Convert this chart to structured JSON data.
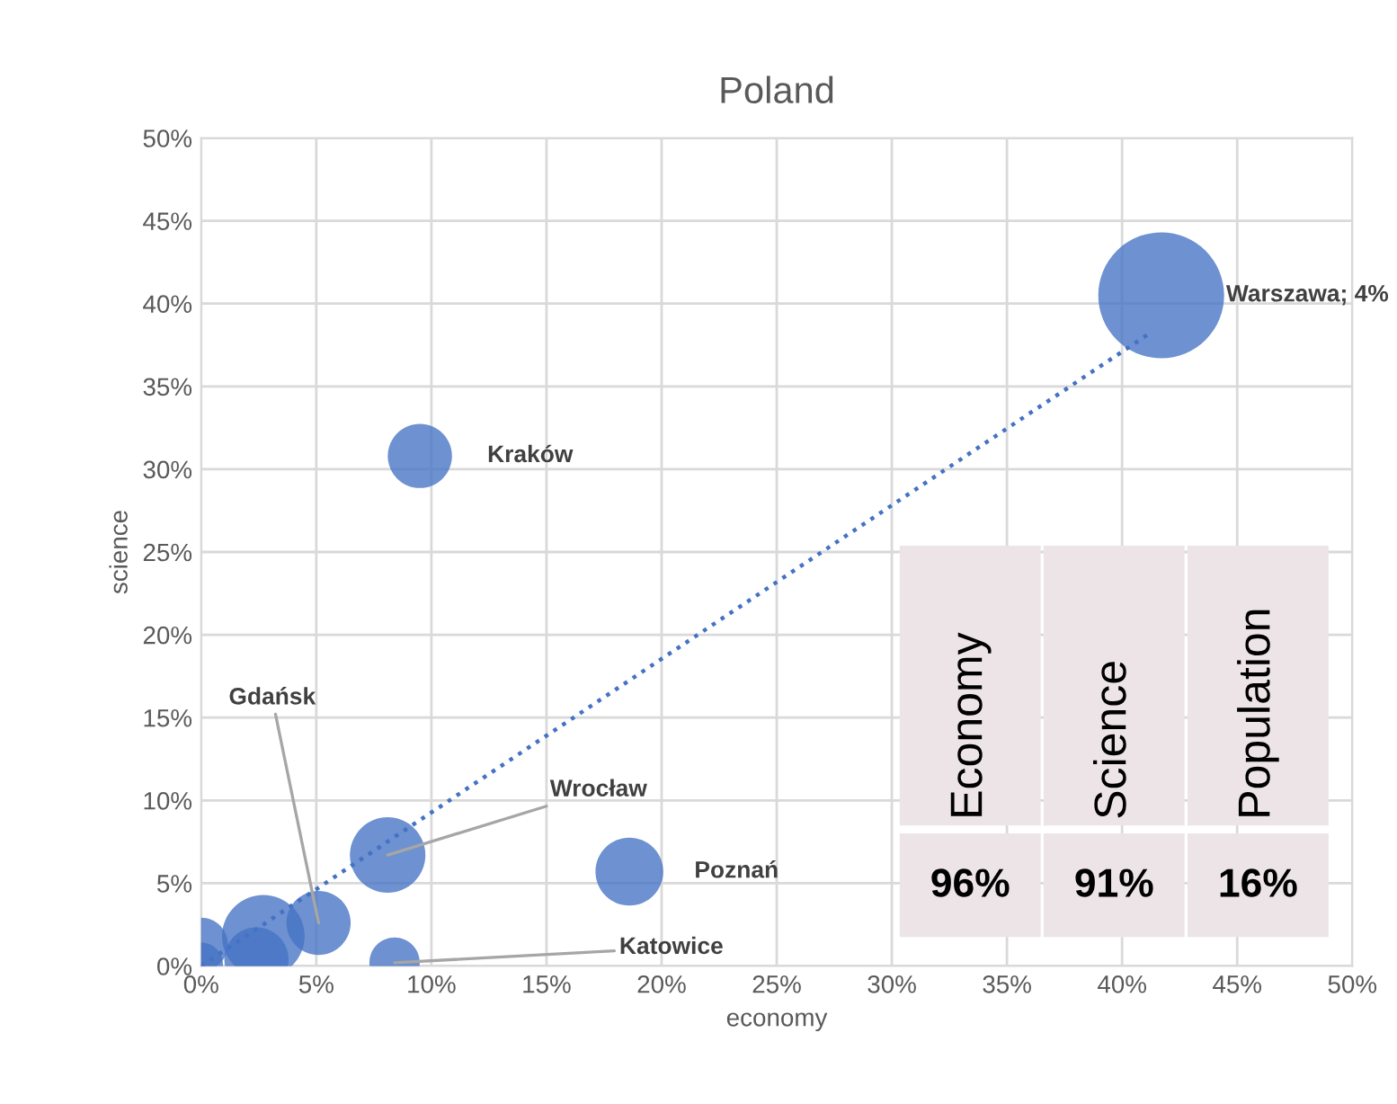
{
  "chart_data": [
    {
      "type": "bubble",
      "title": "Poland",
      "xlabel": "economy",
      "ylabel": "science",
      "xlim": [
        0,
        50
      ],
      "ylim": [
        0,
        50
      ],
      "xticks": [
        {
          "value": 0,
          "label": "0%"
        },
        {
          "value": 5,
          "label": "5%"
        },
        {
          "value": 10,
          "label": "10%"
        },
        {
          "value": 15,
          "label": "15%"
        },
        {
          "value": 20,
          "label": "20%"
        },
        {
          "value": 25,
          "label": "25%"
        },
        {
          "value": 30,
          "label": "30%"
        },
        {
          "value": 35,
          "label": "35%"
        },
        {
          "value": 40,
          "label": "40%"
        },
        {
          "value": 45,
          "label": "45%"
        },
        {
          "value": 50,
          "label": "50%"
        }
      ],
      "yticks": [
        {
          "value": 0,
          "label": "0%"
        },
        {
          "value": 5,
          "label": "5%"
        },
        {
          "value": 10,
          "label": "10%"
        },
        {
          "value": 15,
          "label": "15%"
        },
        {
          "value": 20,
          "label": "20%"
        },
        {
          "value": 25,
          "label": "25%"
        },
        {
          "value": 30,
          "label": "30%"
        },
        {
          "value": 35,
          "label": "35%"
        },
        {
          "value": 40,
          "label": "40%"
        },
        {
          "value": 45,
          "label": "45%"
        },
        {
          "value": 50,
          "label": "50%"
        }
      ],
      "grid": true,
      "series": [
        {
          "type": "bubble",
          "color": "#4472c4",
          "x": [
            41.7,
            9.5,
            8.1,
            18.6,
            8.4,
            5.1,
            2.7,
            2.4,
            0,
            0
          ],
          "values": [
            40.5,
            30.8,
            6.7,
            5.7,
            0.2,
            2.6,
            1.8,
            0.4,
            1.3,
            0.1
          ],
          "sizes": [
            1,
            0.26,
            0.36,
            0.29,
            0.16,
            0.26,
            0.43,
            0.26,
            0.18,
            0.12
          ]
        },
        {
          "type": "line",
          "color": "#4472c4",
          "line_style": "dotted",
          "x": [
            0,
            41.3
          ],
          "values": [
            0,
            38.3
          ]
        }
      ],
      "annotations": [
        {
          "text": "Warszawa; 4%",
          "x": 41.7,
          "y": 40.5
        },
        {
          "text": "Kraków",
          "x": 9.5,
          "y": 30.8
        },
        {
          "text": "Gdańsk",
          "x": 5.1,
          "y": 2.6
        },
        {
          "text": "Wrocław",
          "x": 8.1,
          "y": 6.7
        },
        {
          "text": "Poznań",
          "x": 18.6,
          "y": 5.7
        },
        {
          "text": "Katowice",
          "x": 8.4,
          "y": 0.2
        }
      ]
    },
    {
      "type": "other",
      "categories": [
        "Economy",
        "Science",
        "Population"
      ],
      "value_labels": [
        "96%",
        "91%",
        "16%"
      ],
      "color": "#ede4e8"
    }
  ]
}
